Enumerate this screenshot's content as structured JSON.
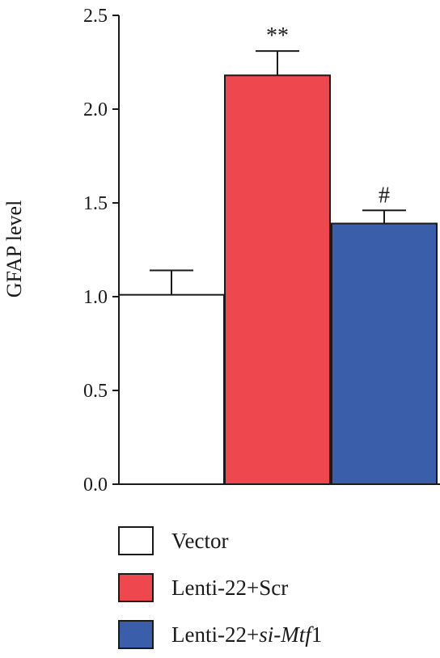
{
  "chart_data": {
    "type": "bar",
    "categories": [
      "Vector",
      "Lenti-22+Scr",
      "Lenti-22+si-Mtf1"
    ],
    "values": [
      1.01,
      2.18,
      1.39
    ],
    "errors": [
      0.13,
      0.13,
      0.07
    ],
    "annotations": [
      "",
      "**",
      "#"
    ],
    "colors": [
      "#ffffff",
      "#ee474e",
      "#3a5ea9"
    ],
    "ylabel": "GFAP level",
    "ylim": [
      0,
      2.5
    ],
    "yticks": [
      "0.0",
      "0.5",
      "1.0",
      "1.5",
      "2.0",
      "2.5"
    ],
    "grid": false,
    "legend_position": "bottom"
  },
  "legend": {
    "items": [
      {
        "label": "Vector",
        "color": "#ffffff"
      },
      {
        "label": "Lenti-22+Scr",
        "color": "#ee474e"
      },
      {
        "label_prefix": "Lenti-22+",
        "label_italic": "si-Mtf",
        "label_suffix": "1",
        "color": "#3a5ea9"
      }
    ]
  }
}
